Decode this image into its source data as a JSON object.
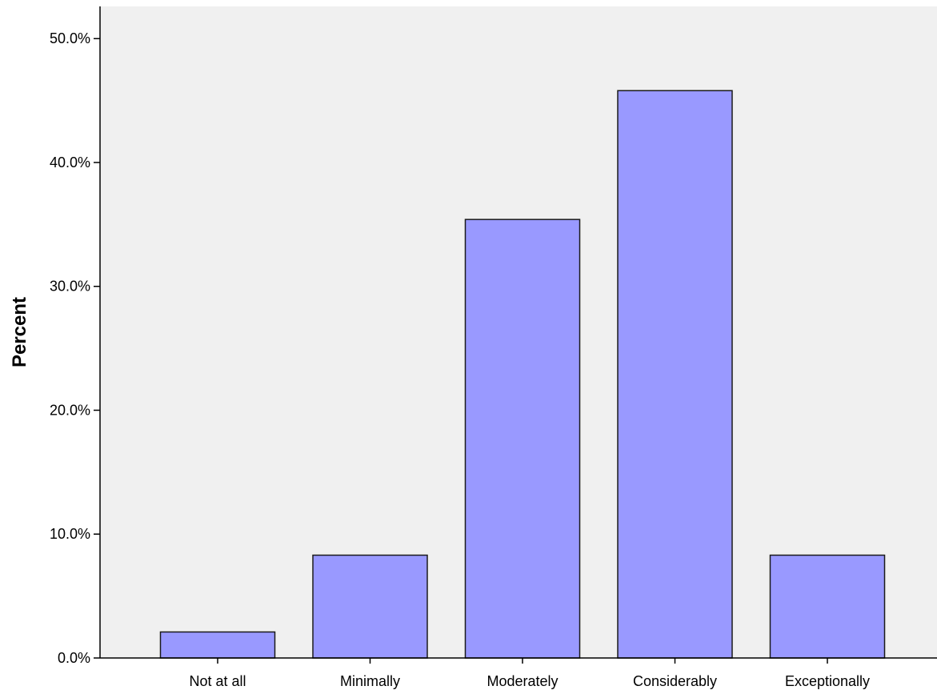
{
  "chart_data": {
    "type": "bar",
    "title": "",
    "xlabel": "",
    "ylabel": "Percent",
    "categories": [
      "Not at all",
      "Minimally",
      "Moderately",
      "Considerably",
      "Exceptionally"
    ],
    "values": [
      2.1,
      8.3,
      35.4,
      45.8,
      8.3
    ],
    "ylim": [
      0,
      52.6
    ],
    "yticks": [
      0,
      10,
      20,
      30,
      40,
      50
    ],
    "ytick_labels": [
      "0.0%",
      "10.0%",
      "20.0%",
      "30.0%",
      "40.0%",
      "50.0%"
    ],
    "grid": false,
    "legend": "none",
    "colors": {
      "bar_fill": "#9999ff",
      "bar_stroke": "#1a1a1a",
      "plot_background": "#f0f0f0",
      "axis": "#000000"
    }
  }
}
